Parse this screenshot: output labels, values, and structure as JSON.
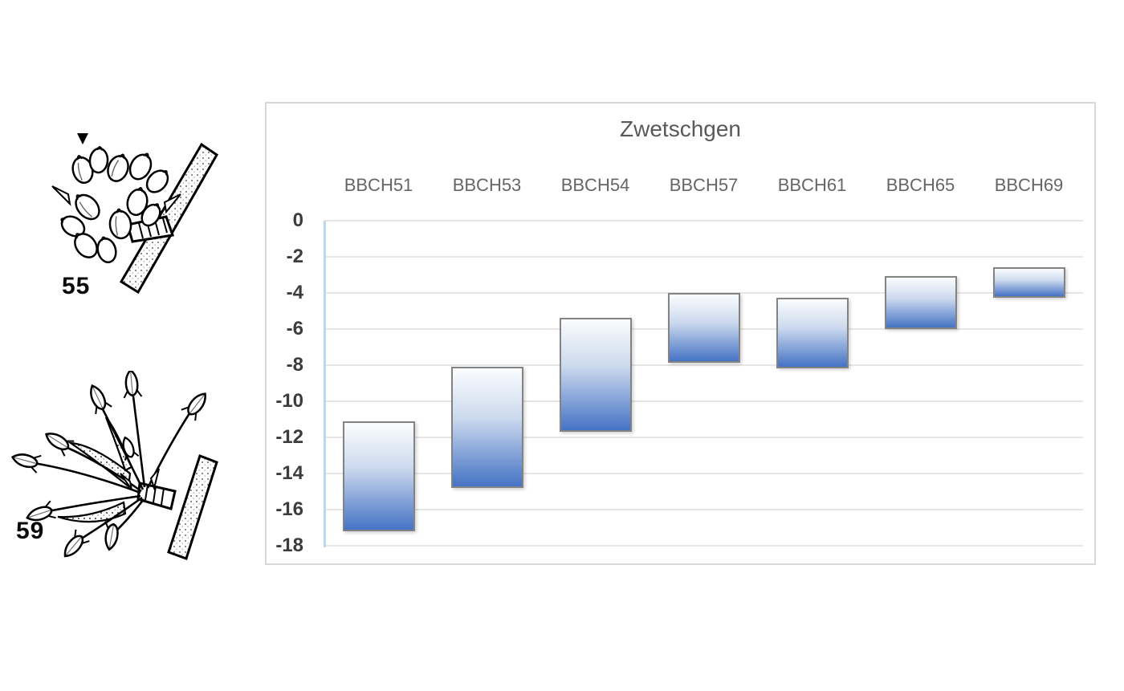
{
  "illustrations": [
    {
      "label": "55",
      "name": "bbch-stage-55-bud-cluster"
    },
    {
      "label": "59",
      "name": "bbch-stage-59-bud-cluster"
    }
  ],
  "chart_data": {
    "type": "bar",
    "subtype": "floating-range-columns",
    "title": "Zwetschgen",
    "categories": [
      "BBCH51",
      "BBCH53",
      "BBCH54",
      "BBCH57",
      "BBCH61",
      "BBCH65",
      "BBCH69"
    ],
    "bars": [
      {
        "category": "BBCH51",
        "high": -11.1,
        "low": -17.2
      },
      {
        "category": "BBCH53",
        "high": -8.1,
        "low": -14.8
      },
      {
        "category": "BBCH54",
        "high": -5.4,
        "low": -11.7
      },
      {
        "category": "BBCH57",
        "high": -4.0,
        "low": -7.9
      },
      {
        "category": "BBCH61",
        "high": -4.3,
        "low": -8.2
      },
      {
        "category": "BBCH65",
        "high": -3.1,
        "low": -6.0
      },
      {
        "category": "BBCH69",
        "high": -2.6,
        "low": -4.3
      }
    ],
    "ylim": [
      0,
      -18
    ],
    "ytick_step": 2,
    "yticks": [
      "0",
      "-2",
      "-4",
      "-6",
      "-8",
      "-10",
      "-12",
      "-14",
      "-16",
      "-18"
    ],
    "grid": true,
    "legend": "none",
    "xlabel": "",
    "ylabel": "",
    "colors": {
      "bar_gradient_top": "#fbfdfe",
      "bar_gradient_mid": "#ccd9ee",
      "bar_gradient_bottom": "#4573c5",
      "bar_border": "#838383",
      "axis_line": "#bdd7ee",
      "gridline": "#e6e6e6",
      "tick_label": "#3c3c3c",
      "category_label": "#666666",
      "title_color": "#595959",
      "chart_border": "#d8d8d8"
    }
  }
}
